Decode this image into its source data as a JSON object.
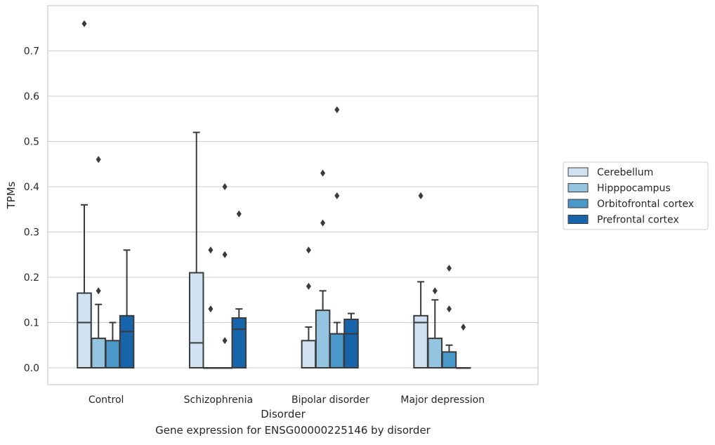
{
  "caption": "Gene expression for ENSG00000225146 by disorder",
  "chart_data": {
    "type": "boxplot",
    "title": "",
    "xlabel": "Disorder",
    "ylabel": "TPMs",
    "ylim": [
      -0.037,
      0.805
    ],
    "yticks": [
      0.0,
      0.1,
      0.2,
      0.3,
      0.4,
      0.5,
      0.6,
      0.7
    ],
    "ytick_labels": [
      "0.0",
      "0.1",
      "0.2",
      "0.3",
      "0.4",
      "0.5",
      "0.6",
      "0.7"
    ],
    "grid": true,
    "legend_position": "right",
    "categories": [
      "Control",
      "Schizophrenia",
      "Bipolar disorder",
      "Major depression"
    ],
    "series": [
      {
        "name": "Cerebellum",
        "color": "#d0e1f2",
        "boxes": [
          {
            "q1": 0.0,
            "median": 0.1,
            "q3": 0.165,
            "whisker_low": 0.0,
            "whisker_high": 0.36,
            "outliers": [
              0.76
            ]
          },
          {
            "q1": 0.0,
            "median": 0.055,
            "q3": 0.21,
            "whisker_low": 0.0,
            "whisker_high": 0.52,
            "outliers": []
          },
          {
            "q1": 0.0,
            "median": 0.0,
            "q3": 0.06,
            "whisker_low": 0.0,
            "whisker_high": 0.09,
            "outliers": [
              0.18,
              0.26
            ]
          },
          {
            "q1": 0.0,
            "median": 0.1,
            "q3": 0.115,
            "whisker_low": 0.0,
            "whisker_high": 0.19,
            "outliers": [
              0.38
            ]
          }
        ]
      },
      {
        "name": "Hipppocampus",
        "color": "#94c4df",
        "boxes": [
          {
            "q1": 0.0,
            "median": 0.0,
            "q3": 0.065,
            "whisker_low": 0.0,
            "whisker_high": 0.14,
            "outliers": [
              0.17,
              0.46
            ]
          },
          {
            "q1": 0.0,
            "median": 0.0,
            "q3": 0.0,
            "whisker_low": 0.0,
            "whisker_high": 0.0,
            "outliers": [
              0.13,
              0.26
            ]
          },
          {
            "q1": 0.0,
            "median": 0.0,
            "q3": 0.127,
            "whisker_low": 0.0,
            "whisker_high": 0.17,
            "outliers": [
              0.32,
              0.43
            ]
          },
          {
            "q1": 0.0,
            "median": 0.0,
            "q3": 0.065,
            "whisker_low": 0.0,
            "whisker_high": 0.15,
            "outliers": [
              0.17
            ]
          }
        ]
      },
      {
        "name": "Orbitofrontal cortex",
        "color": "#4a98c9",
        "boxes": [
          {
            "q1": 0.0,
            "median": 0.0,
            "q3": 0.06,
            "whisker_low": 0.0,
            "whisker_high": 0.1,
            "outliers": []
          },
          {
            "q1": 0.0,
            "median": 0.0,
            "q3": 0.0,
            "whisker_low": 0.0,
            "whisker_high": 0.0,
            "outliers": [
              0.06,
              0.25,
              0.4
            ]
          },
          {
            "q1": 0.0,
            "median": 0.075,
            "q3": 0.075,
            "whisker_low": 0.0,
            "whisker_high": 0.1,
            "outliers": [
              0.38,
              0.57
            ]
          },
          {
            "q1": 0.0,
            "median": 0.0,
            "q3": 0.035,
            "whisker_low": 0.0,
            "whisker_high": 0.05,
            "outliers": [
              0.13,
              0.22
            ]
          }
        ]
      },
      {
        "name": "Prefrontal cortex",
        "color": "#1764ab",
        "boxes": [
          {
            "q1": 0.0,
            "median": 0.08,
            "q3": 0.115,
            "whisker_low": 0.0,
            "whisker_high": 0.26,
            "outliers": []
          },
          {
            "q1": 0.0,
            "median": 0.085,
            "q3": 0.11,
            "whisker_low": 0.0,
            "whisker_high": 0.13,
            "outliers": [
              0.34
            ]
          },
          {
            "q1": 0.0,
            "median": 0.075,
            "q3": 0.107,
            "whisker_low": 0.0,
            "whisker_high": 0.12,
            "outliers": []
          },
          {
            "q1": 0.0,
            "median": 0.0,
            "q3": 0.0,
            "whisker_low": 0.0,
            "whisker_high": 0.0,
            "outliers": [
              0.09
            ]
          }
        ]
      }
    ]
  }
}
